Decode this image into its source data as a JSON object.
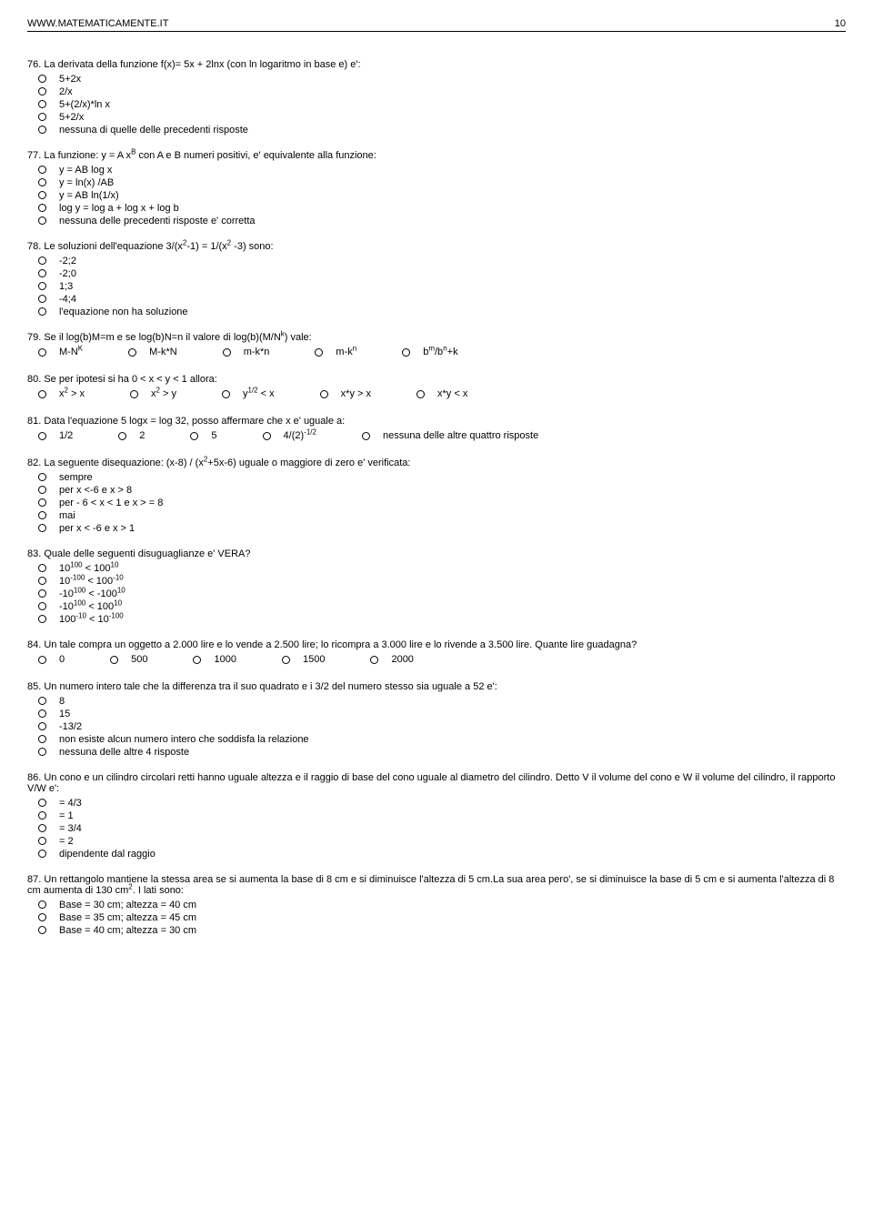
{
  "header": {
    "site": "WWW.MATEMATICAMENTE.IT",
    "page": "10"
  },
  "questions": [
    {
      "num": "76",
      "text": "La derivata della funzione f(x)= 5x + 2lnx (con ln logaritmo in base e) e':",
      "layout": "vertical",
      "options": [
        "5+2x",
        "2/x",
        "5+(2/x)*ln x",
        "5+2/x",
        "nessuna di quelle delle precedenti risposte"
      ]
    },
    {
      "num": "77",
      "text": "La funzione: y = A x<sup>B</sup> con A e B numeri positivi, e' equivalente alla funzione:",
      "layout": "vertical",
      "options": [
        "y = AB log x",
        "y = ln(x) /AB",
        "y = AB ln(1/x)",
        "log y = log a + log x + log b",
        "nessuna delle precedenti risposte e' corretta"
      ]
    },
    {
      "num": "78",
      "text": "Le soluzioni dell'equazione 3/(x<sup>2</sup>-1) = 1/(x<sup>2</sup> -3) sono:",
      "layout": "vertical",
      "options": [
        "-2;2",
        "-2;0",
        "1;3",
        "-4;4",
        "l'equazione non ha soluzione"
      ]
    },
    {
      "num": "79",
      "text": "Se il log(b)M=m e se log(b)N=n il valore di log(b)(M/N<sup>k</sup>) vale:",
      "layout": "horizontal",
      "options": [
        "M-N<sup>K</sup>",
        "M-k*N",
        "m-k*n",
        "m-k<sup>n</sup>",
        "b<sup>m</sup>/b<sup>n</sup>+k"
      ]
    },
    {
      "num": "80",
      "text": "Se per ipotesi si ha 0 < x < y < 1 allora:",
      "layout": "horizontal",
      "options": [
        "x<sup>2</sup> > x",
        "x<sup>2</sup> > y",
        "y<sup>1/2</sup> < x",
        "x*y > x",
        "x*y < x"
      ]
    },
    {
      "num": "81",
      "text": "Data l'equazione 5 logx = log 32, posso affermare che x e' uguale a:",
      "layout": "horizontal",
      "options": [
        "1/2",
        "2",
        "5",
        "4/(2)<sup>-1/2</sup>",
        "nessuna delle altre quattro risposte"
      ]
    },
    {
      "num": "82",
      "text": "La seguente disequazione: (x-8) / (x<sup>2</sup>+5x-6) uguale o maggiore di zero e' verificata:",
      "layout": "vertical",
      "options": [
        "sempre",
        "per x <-6 e x > 8",
        "per - 6 < x < 1 e x > = 8",
        "mai",
        "per x < -6 e x > 1"
      ]
    },
    {
      "num": "83",
      "text": "Quale delle seguenti disuguaglianze e' VERA?",
      "layout": "vertical",
      "options": [
        "10<sup>100</sup> < 100<sup>10</sup>",
        "10<sup>-100</sup> < 100<sup>-10</sup>",
        "-10<sup>100</sup> < -100<sup>10</sup>",
        "-10<sup>100</sup> < 100<sup>10</sup>",
        "100<sup>-10</sup> < 10<sup>-100</sup>"
      ]
    },
    {
      "num": "84",
      "text": "Un tale compra un oggetto a 2.000 lire e lo vende a 2.500 lire; lo ricompra a 3.000 lire e lo rivende a 3.500 lire. Quante lire guadagna?",
      "layout": "horizontal",
      "options": [
        "0",
        "500",
        "1000",
        "1500",
        "2000"
      ]
    },
    {
      "num": "85",
      "text": "Un numero intero tale che la differenza tra il suo quadrato e i 3/2 del numero stesso sia uguale a 52 e':",
      "layout": "vertical",
      "options": [
        "8",
        "15",
        "-13/2",
        "non esiste alcun numero intero che soddisfa la relazione",
        "nessuna delle altre 4 risposte"
      ]
    },
    {
      "num": "86",
      "text": "Un cono e un cilindro circolari retti hanno uguale altezza e il raggio di base del cono uguale al diametro del cilindro. Detto V il volume del cono e W il volume del cilindro, il rapporto V/W e':",
      "layout": "vertical",
      "options": [
        "= 4/3",
        "= 1",
        "= 3/4",
        "= 2",
        "dipendente dal raggio"
      ]
    },
    {
      "num": "87",
      "text": "Un rettangolo mantiene la stessa area se si aumenta la base di 8 cm e si diminuisce l'altezza di 5 cm.La sua area pero', se si diminuisce la base di 5 cm e si aumenta l'altezza di 8 cm aumenta di 130 cm<sup>2</sup>. I lati sono:",
      "layout": "vertical",
      "options": [
        "Base = 30 cm; altezza = 40 cm",
        "Base = 35 cm; altezza = 45 cm",
        "Base = 40 cm; altezza = 30 cm"
      ]
    }
  ]
}
